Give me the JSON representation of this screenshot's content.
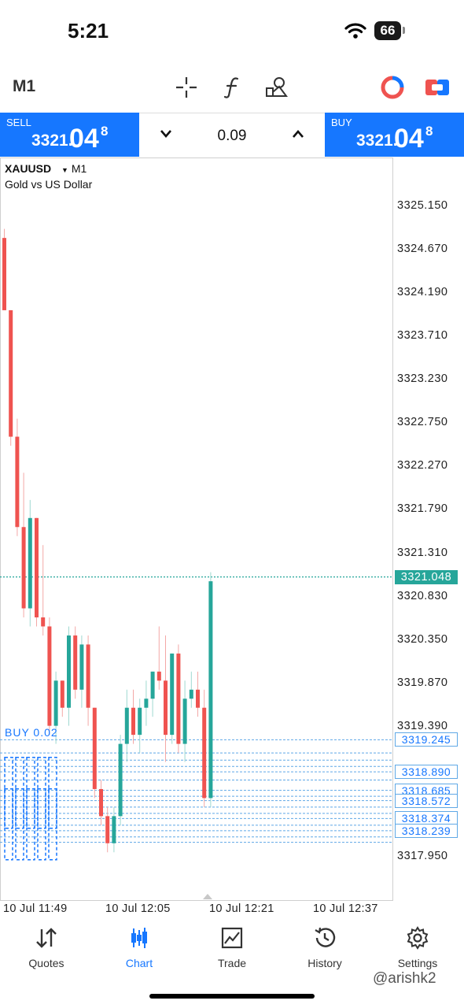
{
  "status_bar": {
    "time": "5:21",
    "battery": "66"
  },
  "toolbar": {
    "timeframe": "M1"
  },
  "trade": {
    "sell_label": "SELL",
    "sell_price_main": "3321.",
    "sell_price_big": "04",
    "sell_price_sup": "8",
    "buy_label": "BUY",
    "buy_price_main": "3321.",
    "buy_price_big": "04",
    "buy_price_sup": "8",
    "lot": "0.09"
  },
  "chart": {
    "symbol": "XAUUSD",
    "timeframe": "M1",
    "description": "Gold vs US Dollar",
    "order_label": "BUY 0.02",
    "price_labels": [
      "3325.150",
      "3324.670",
      "3324.190",
      "3323.710",
      "3323.230",
      "3322.750",
      "3322.270",
      "3321.790",
      "3321.310",
      "3320.830",
      "3320.350",
      "3319.870",
      "3319.390",
      "3317.950"
    ],
    "current_price": "3321.048",
    "order_price_labels": [
      "3319.245",
      "3318.890",
      "3318.685",
      "3318.572",
      "3318.374",
      "3318.239"
    ],
    "time_labels": [
      "10 Jul 11:49",
      "10 Jul 12:05",
      "10 Jul 12:21",
      "10 Jul 12:37"
    ],
    "accent_up": "#26a69a",
    "accent_down": "#ef5350"
  },
  "chart_data": {
    "type": "candlestick",
    "ylim": [
      3317.8,
      3325.4
    ],
    "candles": [
      {
        "o": 3324.8,
        "h": 3324.9,
        "l": 3324.0,
        "c": 3324.0
      },
      {
        "o": 3324.0,
        "h": 3324.0,
        "l": 3322.5,
        "c": 3322.6
      },
      {
        "o": 3322.6,
        "h": 3322.8,
        "l": 3321.5,
        "c": 3321.6
      },
      {
        "o": 3321.6,
        "h": 3322.2,
        "l": 3320.6,
        "c": 3320.7
      },
      {
        "o": 3320.7,
        "h": 3321.9,
        "l": 3320.5,
        "c": 3321.7
      },
      {
        "o": 3321.7,
        "h": 3321.7,
        "l": 3320.5,
        "c": 3320.6
      },
      {
        "o": 3320.6,
        "h": 3321.4,
        "l": 3320.4,
        "c": 3320.5
      },
      {
        "o": 3320.5,
        "h": 3320.6,
        "l": 3319.3,
        "c": 3319.4
      },
      {
        "o": 3319.4,
        "h": 3320.0,
        "l": 3319.2,
        "c": 3319.9
      },
      {
        "o": 3319.9,
        "h": 3319.9,
        "l": 3319.5,
        "c": 3319.6
      },
      {
        "o": 3319.6,
        "h": 3320.5,
        "l": 3319.4,
        "c": 3320.4
      },
      {
        "o": 3320.4,
        "h": 3320.5,
        "l": 3319.7,
        "c": 3319.8
      },
      {
        "o": 3319.8,
        "h": 3320.4,
        "l": 3319.6,
        "c": 3320.3
      },
      {
        "o": 3320.3,
        "h": 3320.4,
        "l": 3319.4,
        "c": 3319.6
      },
      {
        "o": 3319.6,
        "h": 3319.6,
        "l": 3318.6,
        "c": 3318.7
      },
      {
        "o": 3318.7,
        "h": 3318.8,
        "l": 3318.3,
        "c": 3318.4
      },
      {
        "o": 3318.4,
        "h": 3318.5,
        "l": 3318.0,
        "c": 3318.1
      },
      {
        "o": 3318.1,
        "h": 3318.5,
        "l": 3318.0,
        "c": 3318.4
      },
      {
        "o": 3318.4,
        "h": 3319.3,
        "l": 3318.3,
        "c": 3319.2
      },
      {
        "o": 3319.2,
        "h": 3319.8,
        "l": 3319.0,
        "c": 3319.6
      },
      {
        "o": 3319.6,
        "h": 3319.8,
        "l": 3319.2,
        "c": 3319.3
      },
      {
        "o": 3319.3,
        "h": 3319.7,
        "l": 3319.1,
        "c": 3319.6
      },
      {
        "o": 3319.6,
        "h": 3319.9,
        "l": 3319.4,
        "c": 3319.7
      },
      {
        "o": 3319.7,
        "h": 3320.0,
        "l": 3319.5,
        "c": 3320.0
      },
      {
        "o": 3320.0,
        "h": 3320.5,
        "l": 3319.8,
        "c": 3319.9
      },
      {
        "o": 3319.9,
        "h": 3320.4,
        "l": 3319.0,
        "c": 3319.3
      },
      {
        "o": 3319.3,
        "h": 3320.2,
        "l": 3319.2,
        "c": 3320.2
      },
      {
        "o": 3320.2,
        "h": 3320.3,
        "l": 3319.1,
        "c": 3319.2
      },
      {
        "o": 3319.2,
        "h": 3319.9,
        "l": 3319.0,
        "c": 3319.7
      },
      {
        "o": 3319.7,
        "h": 3320.0,
        "l": 3319.6,
        "c": 3319.8
      },
      {
        "o": 3319.8,
        "h": 3320.0,
        "l": 3319.5,
        "c": 3319.6
      },
      {
        "o": 3319.6,
        "h": 3319.8,
        "l": 3318.5,
        "c": 3318.6
      },
      {
        "o": 3318.6,
        "h": 3321.1,
        "l": 3318.5,
        "c": 3321.0
      }
    ]
  },
  "nav": {
    "items": [
      {
        "label": "Quotes"
      },
      {
        "label": "Chart"
      },
      {
        "label": "Trade"
      },
      {
        "label": "History"
      },
      {
        "label": "Settings"
      }
    ]
  },
  "watermark": "@arishk2"
}
